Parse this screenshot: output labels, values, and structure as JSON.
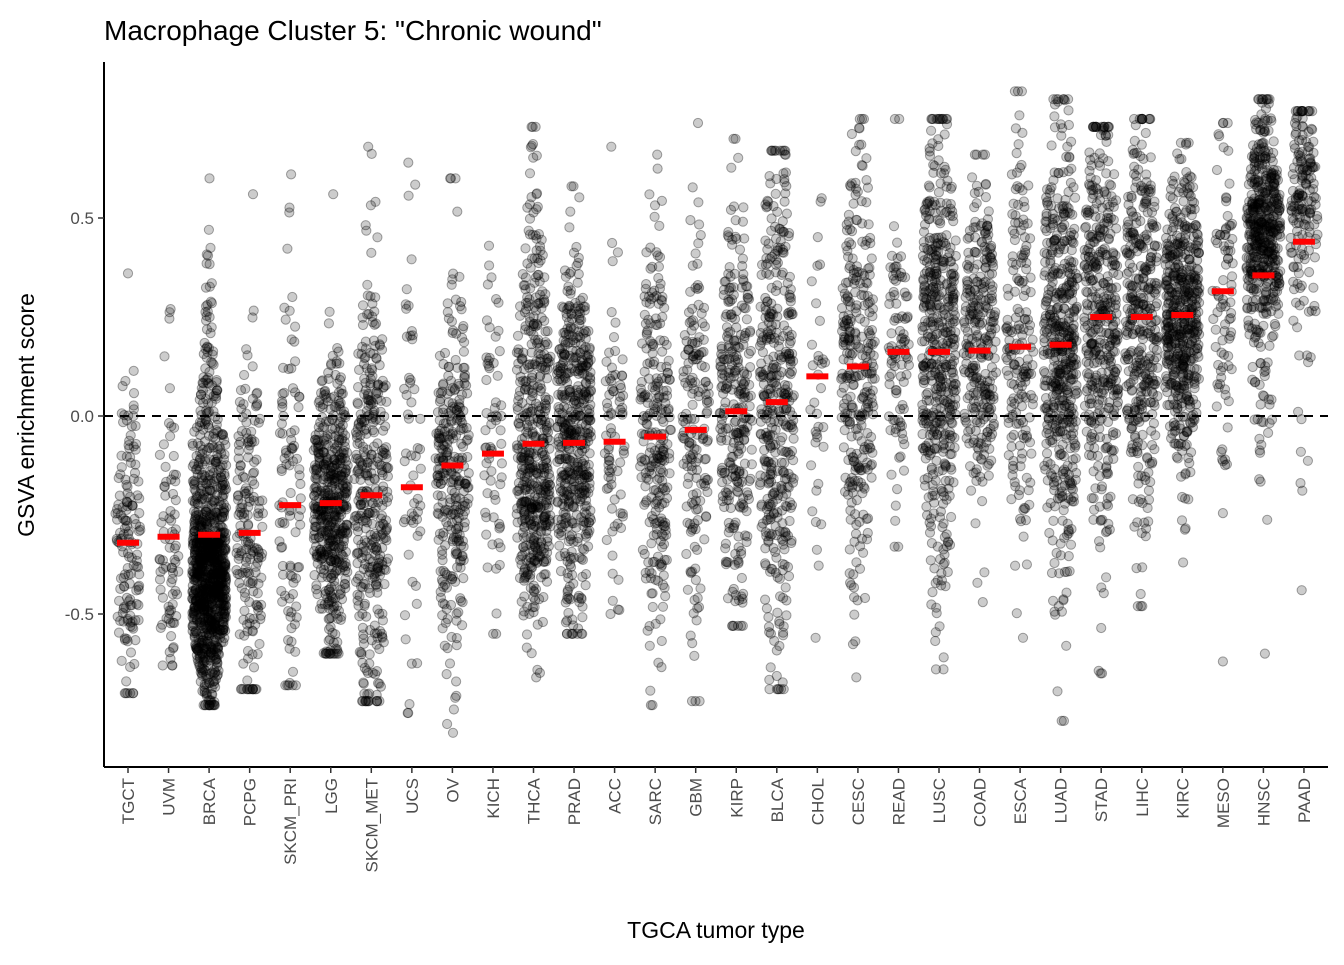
{
  "chart_data": {
    "type": "scatter",
    "subtype": "jittered strip plot with median markers",
    "title": "Macrophage Cluster 5: \"Chronic wound\"",
    "xlabel": "TGCA tumor type",
    "ylabel": "GSVA enrichment score",
    "ylim": [
      -0.88,
      0.89
    ],
    "yticks": [
      -0.5,
      0.0,
      0.5
    ],
    "ytick_labels": [
      "-0.5",
      "0.0",
      "0.5"
    ],
    "reference_line": {
      "y": 0.0,
      "style": "dashed",
      "color": "#000000"
    },
    "grid": false,
    "legend": "none",
    "point_color": "#000000",
    "point_fill_opacity": 0.2,
    "median_color": "#ff0000",
    "categories": [
      "TGCT",
      "UVM",
      "BRCA",
      "PCPG",
      "SKCM_PRI",
      "LGG",
      "SKCM_MET",
      "UCS",
      "OV",
      "KICH",
      "THCA",
      "PRAD",
      "ACC",
      "SARC",
      "GBM",
      "KIRP",
      "BLCA",
      "CHOL",
      "CESC",
      "READ",
      "LUSC",
      "COAD",
      "ESCA",
      "LUAD",
      "STAD",
      "LIHC",
      "KIRC",
      "MESO",
      "HNSC",
      "PAAD"
    ],
    "medians": [
      -0.32,
      -0.305,
      -0.3,
      -0.295,
      -0.225,
      -0.22,
      -0.2,
      -0.18,
      -0.125,
      -0.095,
      -0.07,
      -0.068,
      -0.065,
      -0.052,
      -0.035,
      0.012,
      0.035,
      0.1,
      0.125,
      0.162,
      0.162,
      0.165,
      0.175,
      0.18,
      0.25,
      0.25,
      0.255,
      0.315,
      0.355,
      0.44
    ],
    "distributions": [
      {
        "n": 150,
        "min": -0.7,
        "max": 0.36,
        "sd": 0.2,
        "shape": "normal"
      },
      {
        "n": 80,
        "min": -0.63,
        "max": 0.27,
        "sd": 0.22,
        "shape": "normal"
      },
      {
        "n": 1100,
        "min": -0.73,
        "max": 0.6,
        "sd": 0.15,
        "shape": "skew-low"
      },
      {
        "n": 180,
        "min": -0.69,
        "max": 0.56,
        "sd": 0.25,
        "shape": "normal"
      },
      {
        "n": 100,
        "min": -0.68,
        "max": 0.61,
        "sd": 0.28,
        "shape": "normal"
      },
      {
        "n": 515,
        "min": -0.6,
        "max": 0.56,
        "sd": 0.17,
        "shape": "normal"
      },
      {
        "n": 370,
        "min": -0.72,
        "max": 0.68,
        "sd": 0.28,
        "shape": "normal"
      },
      {
        "n": 57,
        "min": -0.75,
        "max": 0.64,
        "sd": 0.3,
        "shape": "normal"
      },
      {
        "n": 300,
        "min": -0.8,
        "max": 0.6,
        "sd": 0.25,
        "shape": "normal"
      },
      {
        "n": 66,
        "min": -0.55,
        "max": 0.43,
        "sd": 0.22,
        "shape": "normal"
      },
      {
        "n": 510,
        "min": -0.66,
        "max": 0.73,
        "sd": 0.24,
        "shape": "bimodal"
      },
      {
        "n": 495,
        "min": -0.55,
        "max": 0.58,
        "sd": 0.22,
        "shape": "normal"
      },
      {
        "n": 79,
        "min": -0.5,
        "max": 0.68,
        "sd": 0.22,
        "shape": "normal"
      },
      {
        "n": 260,
        "min": -0.73,
        "max": 0.66,
        "sd": 0.27,
        "shape": "normal"
      },
      {
        "n": 170,
        "min": -0.72,
        "max": 0.74,
        "sd": 0.25,
        "shape": "normal"
      },
      {
        "n": 290,
        "min": -0.53,
        "max": 0.7,
        "sd": 0.25,
        "shape": "normal"
      },
      {
        "n": 410,
        "min": -0.69,
        "max": 0.67,
        "sd": 0.32,
        "shape": "normal"
      },
      {
        "n": 36,
        "min": -0.56,
        "max": 0.55,
        "sd": 0.25,
        "shape": "normal"
      },
      {
        "n": 305,
        "min": -0.66,
        "max": 0.75,
        "sd": 0.28,
        "shape": "normal"
      },
      {
        "n": 95,
        "min": -0.33,
        "max": 0.75,
        "sd": 0.2,
        "shape": "normal"
      },
      {
        "n": 500,
        "min": -0.64,
        "max": 0.75,
        "sd": 0.28,
        "shape": "normal"
      },
      {
        "n": 290,
        "min": -0.47,
        "max": 0.66,
        "sd": 0.22,
        "shape": "normal"
      },
      {
        "n": 185,
        "min": -0.56,
        "max": 0.82,
        "sd": 0.27,
        "shape": "normal"
      },
      {
        "n": 515,
        "min": -0.77,
        "max": 0.8,
        "sd": 0.28,
        "shape": "normal"
      },
      {
        "n": 415,
        "min": -0.65,
        "max": 0.73,
        "sd": 0.27,
        "shape": "normal"
      },
      {
        "n": 370,
        "min": -0.48,
        "max": 0.75,
        "sd": 0.25,
        "shape": "normal"
      },
      {
        "n": 530,
        "min": -0.37,
        "max": 0.69,
        "sd": 0.18,
        "shape": "normal"
      },
      {
        "n": 87,
        "min": -0.62,
        "max": 0.74,
        "sd": 0.22,
        "shape": "normal"
      },
      {
        "n": 520,
        "min": -0.6,
        "max": 0.8,
        "sd": 0.18,
        "shape": "skew-high"
      },
      {
        "n": 180,
        "min": -0.44,
        "max": 0.77,
        "sd": 0.2,
        "shape": "skew-high"
      }
    ]
  }
}
